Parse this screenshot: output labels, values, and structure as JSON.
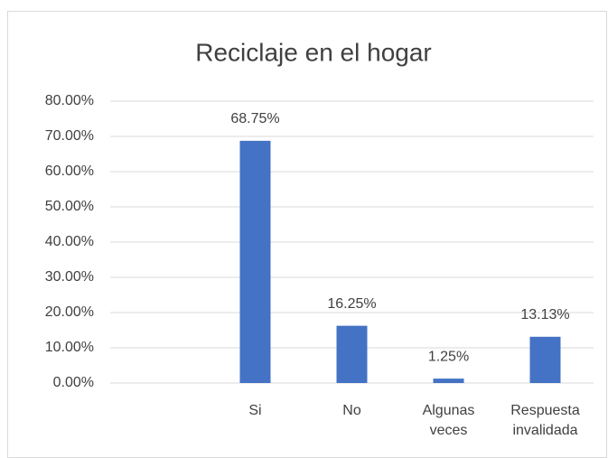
{
  "chart_data": {
    "type": "bar",
    "title": "Reciclaje en el hogar",
    "categories": [
      null,
      "Si",
      "No",
      "Algunas veces",
      "Respuesta invalidada"
    ],
    "values": [
      null,
      68.75,
      16.25,
      1.25,
      13.13
    ],
    "value_labels": [
      null,
      "68.75%",
      "16.25%",
      "1.25%",
      "13.13%"
    ],
    "color": "#4472c4",
    "ylim": [
      0,
      80
    ],
    "yticks": [
      {
        "value": 0,
        "label": "0.00%"
      },
      {
        "value": 10,
        "label": "10.00%"
      },
      {
        "value": 20,
        "label": "20.00%"
      },
      {
        "value": 30,
        "label": "30.00%"
      },
      {
        "value": 40,
        "label": "40.00%"
      },
      {
        "value": 50,
        "label": "50.00%"
      },
      {
        "value": 60,
        "label": "60.00%"
      },
      {
        "value": 70,
        "label": "70.00%"
      },
      {
        "value": 80,
        "label": "80.00%"
      }
    ],
    "grid": true
  }
}
